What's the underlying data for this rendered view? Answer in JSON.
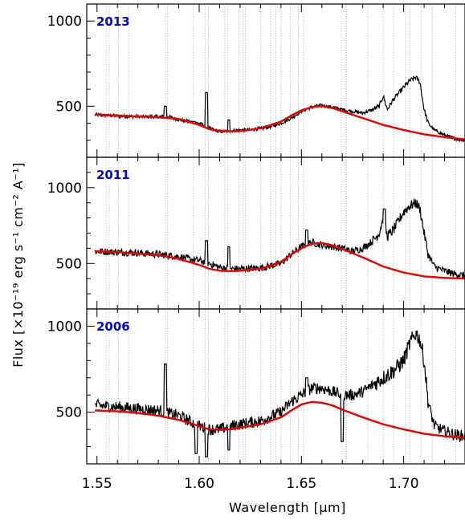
{
  "chart_data": [
    {
      "type": "line",
      "panel": "top",
      "annotation": "2013",
      "ylim": [
        200,
        1100
      ],
      "yticks": [
        500,
        1000
      ],
      "colors": {
        "spectrum": "#000000",
        "model": "#e00000",
        "annotation": "#0000cc",
        "telluric": "#c8c8c8"
      },
      "series": [
        {
          "x": [
            1.55,
            1.555,
            1.565,
            1.575,
            1.585,
            1.59,
            1.595,
            1.6,
            1.605,
            1.61,
            1.615,
            1.62,
            1.625,
            1.63,
            1.635,
            1.64,
            1.645,
            1.65,
            1.655,
            1.66,
            1.665,
            1.67,
            1.675,
            1.68,
            1.685,
            1.688,
            1.69,
            1.692,
            1.695,
            1.7,
            1.703,
            1.706,
            1.708,
            1.71,
            1.712,
            1.715,
            1.72,
            1.725,
            1.73
          ],
          "values": [
            450,
            445,
            440,
            438,
            440,
            420,
            410,
            400,
            370,
            350,
            355,
            360,
            360,
            370,
            380,
            400,
            430,
            470,
            495,
            505,
            495,
            480,
            470,
            460,
            480,
            500,
            560,
            480,
            540,
            610,
            650,
            670,
            640,
            480,
            400,
            360,
            330,
            310,
            300
          ]
        },
        {
          "x": [
            1.55,
            1.56,
            1.57,
            1.58,
            1.59,
            1.6,
            1.605,
            1.61,
            1.615,
            1.62,
            1.63,
            1.64,
            1.645,
            1.65,
            1.655,
            1.66,
            1.665,
            1.67,
            1.68,
            1.69,
            1.7,
            1.71,
            1.72,
            1.73
          ],
          "values": [
            450,
            445,
            440,
            435,
            425,
            390,
            365,
            355,
            352,
            354,
            370,
            410,
            445,
            475,
            495,
            500,
            490,
            470,
            430,
            390,
            360,
            335,
            318,
            305
          ]
        }
      ],
      "spikes": [
        {
          "x": 1.5835,
          "value": 500
        },
        {
          "x": 1.6035,
          "value": 580
        },
        {
          "x": 1.6145,
          "value": 420
        },
        {
          "x": 1.5975,
          "value": 410
        }
      ]
    },
    {
      "type": "line",
      "panel": "middle",
      "annotation": "2011",
      "ylim": [
        200,
        1200
      ],
      "yticks": [
        500,
        1000
      ],
      "colors": {
        "spectrum": "#000000",
        "model": "#e00000",
        "annotation": "#0000cc",
        "telluric": "#c8c8c8"
      },
      "series": [
        {
          "x": [
            1.55,
            1.56,
            1.57,
            1.58,
            1.59,
            1.595,
            1.6,
            1.605,
            1.61,
            1.615,
            1.62,
            1.63,
            1.64,
            1.645,
            1.65,
            1.655,
            1.66,
            1.665,
            1.67,
            1.675,
            1.68,
            1.685,
            1.688,
            1.69,
            1.692,
            1.695,
            1.7,
            1.703,
            1.706,
            1.708,
            1.71,
            1.712,
            1.715,
            1.72,
            1.725,
            1.73
          ],
          "values": [
            580,
            575,
            570,
            560,
            545,
            530,
            520,
            500,
            475,
            465,
            465,
            470,
            500,
            560,
            610,
            640,
            620,
            610,
            600,
            580,
            600,
            650,
            700,
            800,
            680,
            720,
            840,
            880,
            900,
            860,
            700,
            560,
            480,
            450,
            430,
            420
          ]
        },
        {
          "x": [
            1.55,
            1.56,
            1.57,
            1.58,
            1.59,
            1.6,
            1.605,
            1.61,
            1.615,
            1.62,
            1.63,
            1.64,
            1.645,
            1.65,
            1.655,
            1.66,
            1.665,
            1.67,
            1.68,
            1.69,
            1.7,
            1.71,
            1.72,
            1.73
          ],
          "values": [
            580,
            575,
            565,
            555,
            530,
            490,
            465,
            452,
            450,
            452,
            465,
            510,
            560,
            600,
            630,
            635,
            620,
            595,
            540,
            480,
            440,
            415,
            405,
            400
          ]
        }
      ],
      "spikes": [
        {
          "x": 1.6035,
          "value": 650
        },
        {
          "x": 1.6145,
          "value": 610
        },
        {
          "x": 1.6525,
          "value": 720
        },
        {
          "x": 1.6905,
          "value": 860
        }
      ]
    },
    {
      "type": "line",
      "panel": "bottom",
      "annotation": "2006",
      "xlabel": "Wavelength [μm]",
      "ylabel": "Flux [×10⁻¹⁹ erg s⁻¹ cm⁻² A⁻¹]",
      "xlim": [
        1.545,
        1.73
      ],
      "ylim": [
        200,
        1100
      ],
      "xticks": [
        1.55,
        1.6,
        1.65,
        1.7
      ],
      "yticks": [
        500,
        1000
      ],
      "colors": {
        "spectrum": "#000000",
        "model": "#e00000",
        "annotation": "#0000cc",
        "telluric": "#c8c8c8"
      },
      "series": [
        {
          "x": [
            1.55,
            1.56,
            1.57,
            1.58,
            1.59,
            1.595,
            1.6,
            1.605,
            1.61,
            1.615,
            1.62,
            1.63,
            1.64,
            1.645,
            1.65,
            1.655,
            1.66,
            1.665,
            1.67,
            1.675,
            1.68,
            1.685,
            1.69,
            1.695,
            1.7,
            1.703,
            1.706,
            1.708,
            1.71,
            1.712,
            1.715,
            1.72,
            1.725,
            1.73
          ],
          "values": [
            540,
            530,
            520,
            510,
            480,
            450,
            420,
            400,
            400,
            420,
            430,
            450,
            500,
            560,
            600,
            640,
            640,
            620,
            600,
            600,
            620,
            660,
            700,
            740,
            800,
            900,
            960,
            920,
            800,
            560,
            420,
            390,
            370,
            360
          ]
        },
        {
          "x": [
            1.55,
            1.56,
            1.57,
            1.58,
            1.59,
            1.6,
            1.605,
            1.61,
            1.615,
            1.62,
            1.63,
            1.64,
            1.645,
            1.65,
            1.655,
            1.66,
            1.665,
            1.67,
            1.68,
            1.69,
            1.7,
            1.71,
            1.72,
            1.73
          ],
          "values": [
            510,
            505,
            495,
            480,
            455,
            420,
            400,
            398,
            400,
            410,
            430,
            470,
            510,
            545,
            560,
            555,
            540,
            515,
            470,
            430,
            400,
            375,
            360,
            350
          ]
        }
      ],
      "spikes": [
        {
          "x": 1.5835,
          "value": 780
        },
        {
          "x": 1.5985,
          "value": 260
        },
        {
          "x": 1.6035,
          "value": 240
        },
        {
          "x": 1.6145,
          "value": 280
        },
        {
          "x": 1.67,
          "value": 330
        },
        {
          "x": 1.6525,
          "value": 700
        }
      ]
    }
  ],
  "telluric_lines": [
    1.5545,
    1.556,
    1.5605,
    1.5655,
    1.5835,
    1.5845,
    1.597,
    1.603,
    1.6045,
    1.6125,
    1.614,
    1.6195,
    1.6215,
    1.6225,
    1.63,
    1.635,
    1.6375,
    1.64,
    1.6445,
    1.6485,
    1.651,
    1.6695,
    1.6715,
    1.672,
    1.6825,
    1.69,
    1.695,
    1.701,
    1.703,
    1.7085,
    1.714,
    1.7255
  ]
}
